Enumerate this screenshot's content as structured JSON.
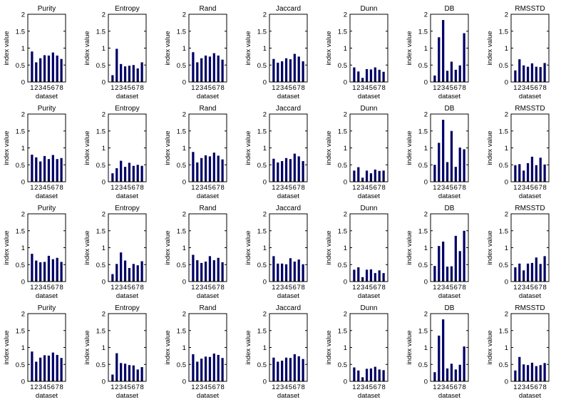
{
  "chart_data": {
    "type": "bar",
    "grid": false,
    "bar_color": "#000066",
    "categories": [
      "1",
      "2",
      "3",
      "4",
      "5",
      "6",
      "7",
      "8"
    ],
    "ylim": [
      0,
      2
    ],
    "yticks": [
      "0",
      "0.5",
      "1",
      "1.5",
      "2"
    ],
    "xlabel": "dataset",
    "ylabel": "index value",
    "titles": [
      "Purity",
      "Entropy",
      "Rand",
      "Jaccard",
      "Dunn",
      "DB",
      "RMSSTD"
    ],
    "rows": [
      [
        [
          0.9,
          0.58,
          0.7,
          0.79,
          0.78,
          0.87,
          0.78,
          0.68
        ],
        [
          0.2,
          0.98,
          0.53,
          0.46,
          0.48,
          0.5,
          0.4,
          0.58
        ],
        [
          0.88,
          0.58,
          0.7,
          0.78,
          0.75,
          0.85,
          0.78,
          0.66
        ],
        [
          0.68,
          0.57,
          0.61,
          0.7,
          0.67,
          0.83,
          0.75,
          0.61
        ],
        [
          0.43,
          0.31,
          0.12,
          0.38,
          0.37,
          0.43,
          0.36,
          0.3
        ],
        [
          0.19,
          1.32,
          1.83,
          0.33,
          0.6,
          0.36,
          0.49,
          1.44
        ],
        [
          0.34,
          0.67,
          0.49,
          0.45,
          0.55,
          0.45,
          0.44,
          0.56
        ]
      ],
      [
        [
          0.8,
          0.72,
          0.6,
          0.76,
          0.67,
          0.79,
          0.67,
          0.7
        ],
        [
          0.25,
          0.4,
          0.62,
          0.44,
          0.56,
          0.47,
          0.5,
          0.47
        ],
        [
          0.88,
          0.57,
          0.7,
          0.78,
          0.75,
          0.86,
          0.77,
          0.66
        ],
        [
          0.68,
          0.57,
          0.61,
          0.7,
          0.67,
          0.83,
          0.75,
          0.61
        ],
        [
          0.33,
          0.43,
          0.12,
          0.33,
          0.25,
          0.36,
          0.32,
          0.33
        ],
        [
          0.5,
          1.15,
          1.83,
          0.58,
          1.5,
          0.44,
          1.01,
          0.96
        ],
        [
          0.49,
          0.52,
          0.33,
          0.55,
          0.74,
          0.49,
          0.71,
          0.51
        ]
      ],
      [
        [
          0.82,
          0.62,
          0.57,
          0.58,
          0.76,
          0.66,
          0.7,
          0.58
        ],
        [
          0.22,
          0.52,
          0.86,
          0.62,
          0.4,
          0.52,
          0.48,
          0.6
        ],
        [
          0.79,
          0.63,
          0.55,
          0.59,
          0.75,
          0.63,
          0.7,
          0.57
        ],
        [
          0.75,
          0.53,
          0.53,
          0.51,
          0.69,
          0.59,
          0.65,
          0.51
        ],
        [
          0.35,
          0.42,
          0.13,
          0.35,
          0.36,
          0.25,
          0.33,
          0.25
        ],
        [
          0.46,
          1.05,
          1.18,
          0.44,
          0.45,
          1.35,
          0.9,
          1.5
        ],
        [
          0.42,
          0.53,
          0.33,
          0.53,
          0.55,
          0.71,
          0.52,
          0.75
        ]
      ],
      [
        [
          0.88,
          0.58,
          0.7,
          0.77,
          0.76,
          0.85,
          0.78,
          0.69
        ],
        [
          0.2,
          0.83,
          0.54,
          0.52,
          0.48,
          0.47,
          0.35,
          0.42
        ],
        [
          0.8,
          0.58,
          0.67,
          0.73,
          0.72,
          0.82,
          0.78,
          0.69
        ],
        [
          0.7,
          0.58,
          0.61,
          0.7,
          0.69,
          0.8,
          0.74,
          0.66
        ],
        [
          0.41,
          0.32,
          0.12,
          0.37,
          0.38,
          0.43,
          0.35,
          0.33
        ],
        [
          0.27,
          1.35,
          1.83,
          0.38,
          0.52,
          0.35,
          0.49,
          1.03
        ],
        [
          0.32,
          0.72,
          0.5,
          0.48,
          0.55,
          0.45,
          0.48,
          0.54
        ]
      ]
    ]
  }
}
